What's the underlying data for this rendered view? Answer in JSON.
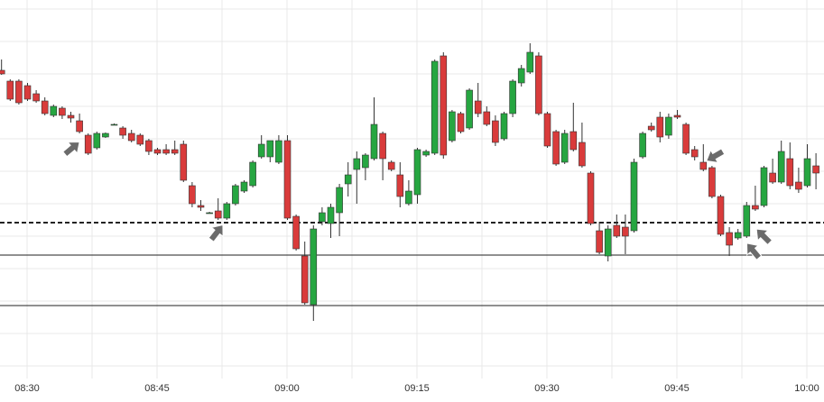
{
  "chart_data": {
    "type": "candlestick",
    "categories": [
      null,
      null,
      null,
      "08:30",
      null,
      null,
      null,
      null,
      null,
      null,
      null,
      null,
      null,
      null,
      null,
      null,
      null,
      null,
      "08:45",
      null,
      null,
      null,
      null,
      null,
      null,
      null,
      null,
      null,
      null,
      null,
      null,
      null,
      null,
      "09:00",
      null,
      null,
      null,
      null,
      null,
      null,
      null,
      null,
      null,
      null,
      null,
      null,
      null,
      null,
      "09:15",
      null,
      null,
      null,
      null,
      null,
      null,
      null,
      null,
      null,
      null,
      null,
      null,
      null,
      null,
      "09:30",
      null,
      null,
      null,
      null,
      null,
      null,
      null,
      null,
      null,
      null,
      null,
      null,
      null,
      null,
      "09:45",
      null,
      null,
      null,
      null,
      null,
      null,
      null,
      null,
      null,
      null,
      null,
      null,
      null,
      null,
      "10:00",
      null
    ],
    "open": [
      342,
      330,
      330,
      325,
      316,
      308,
      292,
      300,
      292,
      286,
      270,
      256,
      268,
      282,
      278,
      272,
      270,
      264,
      254,
      254,
      254,
      260,
      214,
      192,
      184,
      186,
      178,
      194,
      208,
      214,
      246,
      246,
      240,
      264,
      180,
      136,
      82,
      174,
      172,
      184,
      216,
      232,
      234,
      244,
      272,
      240,
      226,
      194,
      204,
      248,
      250,
      358,
      264,
      294,
      278,
      308,
      296,
      286,
      266,
      294,
      328,
      340,
      358,
      294,
      274,
      240,
      274,
      262,
      228,
      164,
      136,
      170,
      168,
      164,
      246,
      280,
      290,
      270,
      292,
      282,
      254,
      240,
      234,
      202,
      162,
      156,
      158,
      192,
      192,
      228,
      218,
      244,
      218,
      214,
      236
    ],
    "high": [
      354,
      332,
      332,
      328,
      320,
      312,
      304,
      302,
      296,
      294,
      272,
      274,
      273,
      283,
      280,
      276,
      272,
      266,
      256,
      260,
      264,
      264,
      218,
      198,
      185,
      200,
      196,
      216,
      220,
      242,
      270,
      264,
      270,
      270,
      182,
      152,
      170,
      190,
      194,
      216,
      240,
      252,
      250,
      312,
      274,
      242,
      240,
      220,
      256,
      254,
      354,
      362,
      298,
      296,
      322,
      328,
      302,
      292,
      296,
      332,
      348,
      372,
      362,
      296,
      276,
      276,
      306,
      284,
      230,
      174,
      170,
      182,
      182,
      244,
      274,
      284,
      296,
      294,
      298,
      284,
      258,
      260,
      236,
      204,
      168,
      166,
      196,
      214,
      236,
      244,
      264,
      262,
      234,
      260,
      250
    ],
    "low": [
      337,
      308,
      304,
      308,
      306,
      292,
      290,
      288,
      284,
      272,
      248,
      254,
      267,
      281,
      266,
      262,
      258,
      248,
      248,
      248,
      248,
      218,
      190,
      186,
      183,
      176,
      176,
      192,
      206,
      212,
      244,
      240,
      238,
      176,
      142,
      82,
      64,
      170,
      156,
      158,
      202,
      194,
      220,
      242,
      220,
      230,
      190,
      192,
      194,
      246,
      248,
      244,
      262,
      272,
      276,
      290,
      280,
      258,
      264,
      290,
      324,
      338,
      292,
      256,
      236,
      238,
      252,
      234,
      170,
      138,
      130,
      156,
      138,
      162,
      244,
      274,
      262,
      266,
      288,
      248,
      242,
      230,
      200,
      158,
      136,
      154,
      156,
      186,
      190,
      216,
      216,
      210,
      206,
      212,
      210
    ],
    "close": [
      338,
      310,
      306,
      310,
      308,
      294,
      302,
      292,
      289,
      274,
      250,
      272,
      272,
      282,
      270,
      264,
      260,
      252,
      250,
      250,
      250,
      220,
      194,
      190,
      184,
      178,
      194,
      214,
      218,
      240,
      260,
      264,
      264,
      178,
      144,
      84,
      166,
      184,
      190,
      212,
      226,
      244,
      248,
      282,
      244,
      232,
      202,
      208,
      254,
      252,
      352,
      248,
      296,
      274,
      320,
      294,
      282,
      262,
      294,
      330,
      344,
      362,
      294,
      258,
      238,
      272,
      254,
      236,
      172,
      140,
      166,
      158,
      158,
      240,
      272,
      276,
      268,
      290,
      290,
      250,
      246,
      232,
      202,
      160,
      148,
      162,
      192,
      188,
      234,
      218,
      252,
      214,
      210,
      244,
      228
    ],
    "up_color": "#26a641",
    "down_color": "#d93b3b",
    "levels": [
      {
        "value": 173,
        "style": "dashed"
      },
      {
        "value": 137,
        "style": "solid"
      },
      {
        "value": 81,
        "style": "solid"
      }
    ],
    "ylim": [
      0,
      420
    ],
    "grid": true
  }
}
